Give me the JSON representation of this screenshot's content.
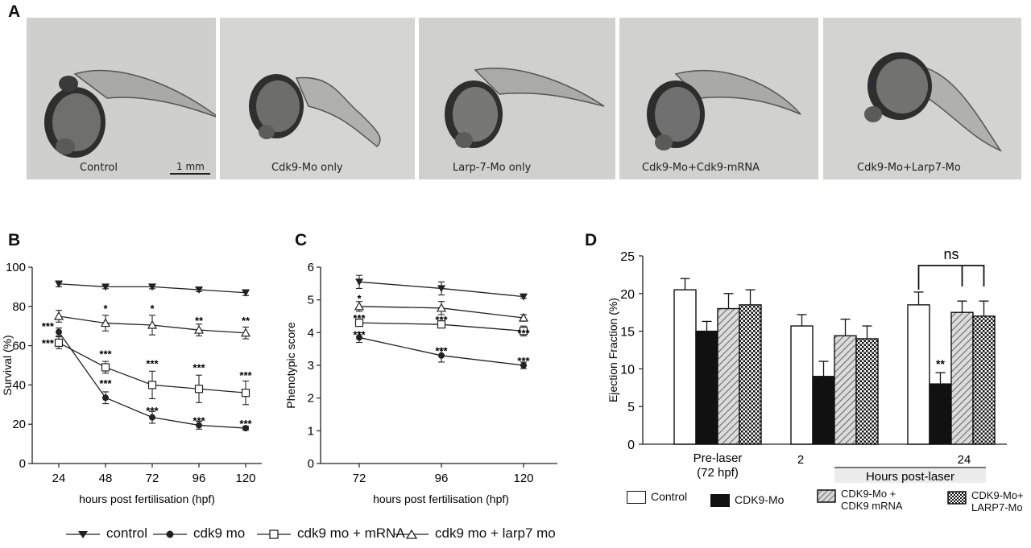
{
  "panels": {
    "a": "A",
    "b": "B",
    "c": "C",
    "d": "D"
  },
  "photos": [
    {
      "caption": "Control"
    },
    {
      "caption": "Cdk9-Mo only"
    },
    {
      "caption": "Larp-7-Mo only"
    },
    {
      "caption": "Cdk9-Mo+Cdk9-mRNA"
    },
    {
      "caption": "Cdk9-Mo+Larp7-Mo"
    }
  ],
  "scale_bar_label": "1 mm",
  "legend_bc": [
    {
      "label": "control",
      "marker": "triangle-down-filled"
    },
    {
      "label": "cdk9 mo",
      "marker": "circle-filled"
    },
    {
      "label": "cdk9 mo + mRNA",
      "marker": "square-open"
    },
    {
      "label": "cdk9 mo + larp7 mo",
      "marker": "triangle-up-open"
    }
  ],
  "chart_data": [
    {
      "id": "B",
      "type": "line",
      "xlabel": "hours post fertilisation (hpf)",
      "ylabel": "Survival (%)",
      "x": [
        24,
        48,
        72,
        96,
        120
      ],
      "xticks": [
        "24",
        "48",
        "72",
        "96",
        "120"
      ],
      "ylim": [
        0,
        100
      ],
      "yticks": [
        "0",
        "20",
        "40",
        "60",
        "80",
        "100"
      ],
      "series": [
        {
          "name": "control",
          "values": [
            91.5,
            90,
            90,
            88.5,
            87
          ],
          "err": [
            1.5,
            1,
            1,
            1,
            1.5
          ]
        },
        {
          "name": "cdk9 mo",
          "values": [
            67,
            33.5,
            23.5,
            19.5,
            18
          ],
          "err": [
            2,
            3,
            3,
            2,
            1
          ]
        },
        {
          "name": "cdk9 mo + mRNA",
          "values": [
            61.5,
            49,
            40,
            38,
            36
          ],
          "err": [
            3,
            3,
            7,
            7,
            6
          ]
        },
        {
          "name": "cdk9 mo + larp7 mo",
          "values": [
            75,
            71.5,
            70.5,
            68,
            66.5
          ],
          "err": [
            3,
            4,
            5,
            3,
            3
          ]
        }
      ],
      "annotations": [
        {
          "x": 24,
          "y": 70,
          "text": "***",
          "anchor": "right"
        },
        {
          "x": 24,
          "y": 61.5,
          "text": "***",
          "anchor": "right"
        },
        {
          "x": 48,
          "y": 79,
          "text": "*"
        },
        {
          "x": 72,
          "y": 79,
          "text": "*"
        },
        {
          "x": 96,
          "y": 73,
          "text": "**"
        },
        {
          "x": 120,
          "y": 73,
          "text": "**"
        },
        {
          "x": 48,
          "y": 56,
          "text": "***"
        },
        {
          "x": 72,
          "y": 51,
          "text": "***"
        },
        {
          "x": 96,
          "y": 49,
          "text": "***"
        },
        {
          "x": 120,
          "y": 45,
          "text": "***"
        },
        {
          "x": 48,
          "y": 41,
          "text": "***"
        },
        {
          "x": 72,
          "y": 27,
          "text": "***"
        },
        {
          "x": 96,
          "y": 22,
          "text": "***"
        },
        {
          "x": 120,
          "y": 20.5,
          "text": "***"
        }
      ]
    },
    {
      "id": "C",
      "type": "line",
      "xlabel": "hours post fertilisation (hpf)",
      "ylabel": "Phenotypic score",
      "x": [
        72,
        96,
        120
      ],
      "xticks": [
        "72",
        "96",
        "120"
      ],
      "ylim": [
        0,
        6
      ],
      "yticks": [
        "0",
        "1",
        "2",
        "3",
        "4",
        "5",
        "6"
      ],
      "series": [
        {
          "name": "control",
          "values": [
            5.55,
            5.35,
            5.1
          ],
          "err": [
            0.2,
            0.2,
            0.05
          ]
        },
        {
          "name": "cdk9 mo",
          "values": [
            3.85,
            3.3,
            3.0
          ],
          "err": [
            0.15,
            0.2,
            0.1
          ]
        },
        {
          "name": "cdk9 mo + mRNA",
          "values": [
            4.3,
            4.25,
            4.05
          ],
          "err": [
            0.05,
            0.1,
            0.15
          ]
        },
        {
          "name": "cdk9 mo + larp7 mo",
          "values": [
            4.8,
            4.75,
            4.45
          ],
          "err": [
            0.15,
            0.2,
            0.1
          ]
        }
      ],
      "annotations": [
        {
          "x": 72,
          "y": 5.05,
          "text": "*"
        },
        {
          "x": 72,
          "y": 4.45,
          "text": "***"
        },
        {
          "x": 96,
          "y": 4.4,
          "text": "***"
        },
        {
          "x": 120,
          "y": 4.0,
          "text": "***"
        },
        {
          "x": 72,
          "y": 3.95,
          "text": "***"
        },
        {
          "x": 96,
          "y": 3.45,
          "text": "***"
        },
        {
          "x": 120,
          "y": 3.15,
          "text": "***"
        }
      ]
    },
    {
      "id": "D",
      "type": "bar",
      "ylabel": "Ejection Fraction (%)",
      "ylim": [
        0,
        25
      ],
      "yticks": [
        "0",
        "5",
        "10",
        "15",
        "20",
        "25"
      ],
      "groups": [
        {
          "label": "Pre-laser",
          "sublabel": "(72 hpf)",
          "values": [
            20.5,
            15,
            18,
            18.5
          ],
          "err": [
            1.5,
            1.3,
            2,
            2
          ]
        },
        {
          "label": "2",
          "values": [
            15.7,
            9,
            14.4,
            14
          ],
          "err": [
            1.5,
            2,
            2.2,
            1.7
          ]
        },
        {
          "label": "24",
          "values": [
            18.5,
            8,
            17.5,
            17
          ],
          "err": [
            1.7,
            1.5,
            1.5,
            2
          ]
        }
      ],
      "group_axis_label": "Hours post-laser",
      "series": [
        "Control",
        "CDK9-Mo",
        "CDK9-Mo + CDK9 mRNA",
        "CDK9-Mo+ LARP7-Mo"
      ],
      "significance": [
        {
          "group": 2,
          "bar": 1,
          "text": "**"
        }
      ],
      "bracket_label": "ns"
    }
  ],
  "legend_d": [
    {
      "line1": "Control",
      "line2": "",
      "fill": "white"
    },
    {
      "line1": "CDK9-Mo",
      "line2": "",
      "fill": "black"
    },
    {
      "line1": "CDK9-Mo +",
      "line2": "CDK9 mRNA",
      "fill": "hatch"
    },
    {
      "line1": "CDK9-Mo+",
      "line2": "LARP7-Mo",
      "fill": "check"
    }
  ]
}
